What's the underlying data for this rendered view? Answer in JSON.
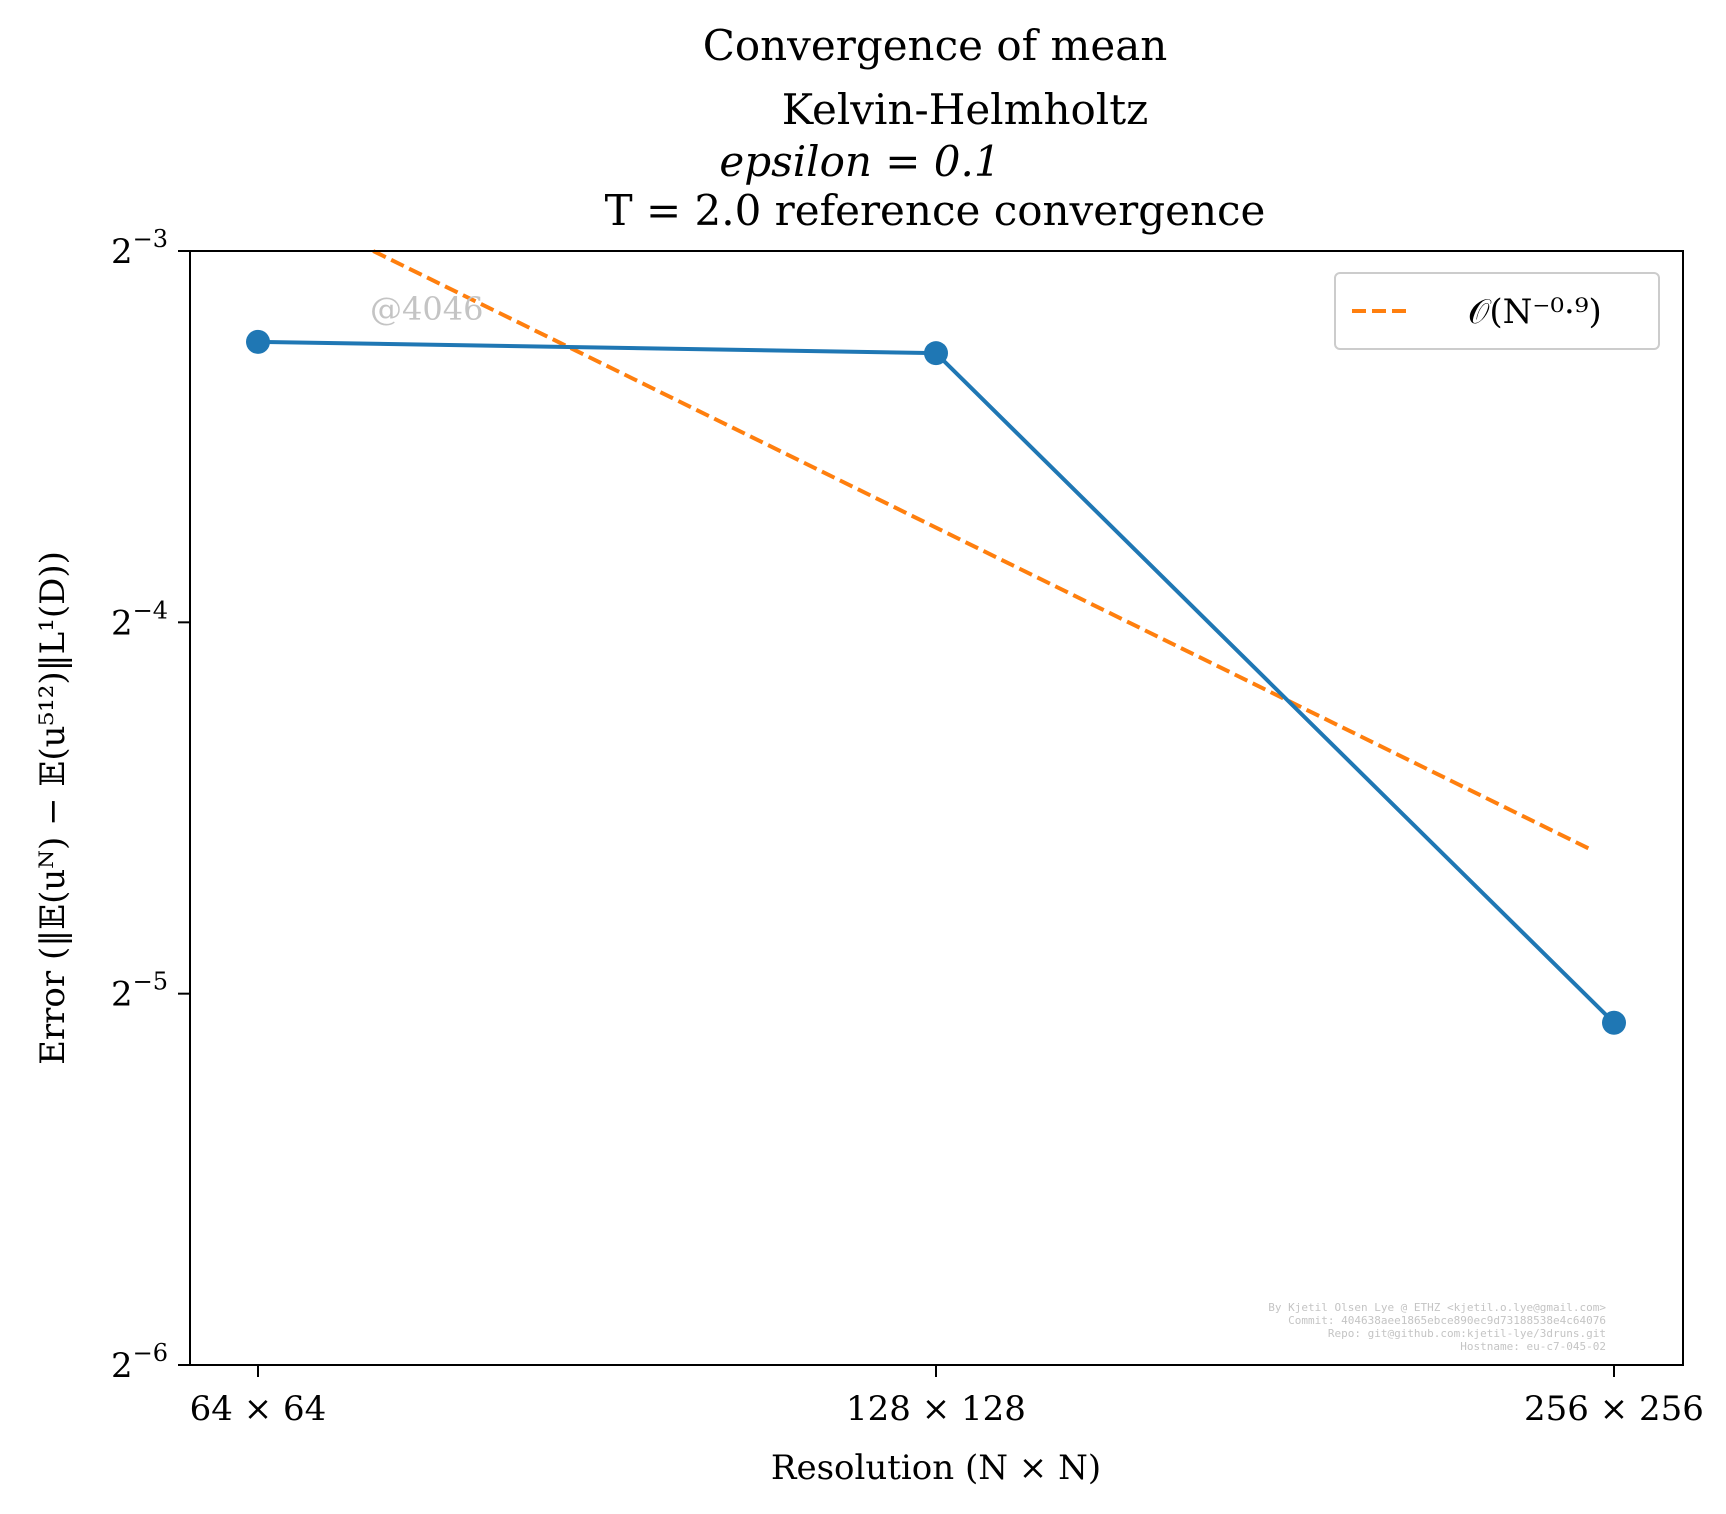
{
  "chart_data": {
    "type": "line",
    "title_lines": [
      "Convergence of mean",
      "Kelvin-Helmholtz",
      "epsilon = 0.1",
      "T = 2.0 reference convergence"
    ],
    "xlabel": "Resolution (N × N)",
    "ylabel": "Error (‖𝔼(uᴺ) − 𝔼(u⁵¹²)‖L¹(D))",
    "categories": [
      "64 × 64",
      "128 × 128",
      "256 × 256"
    ],
    "x": [
      64,
      128,
      256
    ],
    "xscale": "log2",
    "yscale": "log2",
    "ylim_exponent": [
      -6,
      -3
    ],
    "yticks": [
      {
        "exp": -3,
        "base": "2",
        "sup": "−3"
      },
      {
        "exp": -4,
        "base": "2",
        "sup": "−4"
      },
      {
        "exp": -5,
        "base": "2",
        "sup": "−5"
      },
      {
        "exp": -6,
        "base": "2",
        "sup": "−6"
      }
    ],
    "series": [
      {
        "values": [
          0.1055,
          0.1033,
          0.0296
        ],
        "color": "#1f77b4",
        "style": "solid",
        "marker": "circle"
      },
      {
        "name": "𝒪(N⁻⁰·⁹)",
        "x_start": 72,
        "x_end": 250,
        "value_start": 0.125,
        "value_end": 0.0409,
        "color": "#ff7f0e",
        "style": "dashed"
      }
    ],
    "legend": {
      "position": "top-right",
      "entries": [
        "𝒪(N⁻⁰·⁹)"
      ]
    },
    "grid": false,
    "watermark": "@4046",
    "footer_lines": [
      "By Kjetil Olsen Lye @ ETHZ <kjetil.o.lye@gmail.com>",
      "Commit: 404638aee1865ebce890ec9d73188538e4c64076",
      "Repo: git@github.com:kjetil-lye/3druns.git",
      "Hostname: eu-c7-045-02"
    ]
  }
}
